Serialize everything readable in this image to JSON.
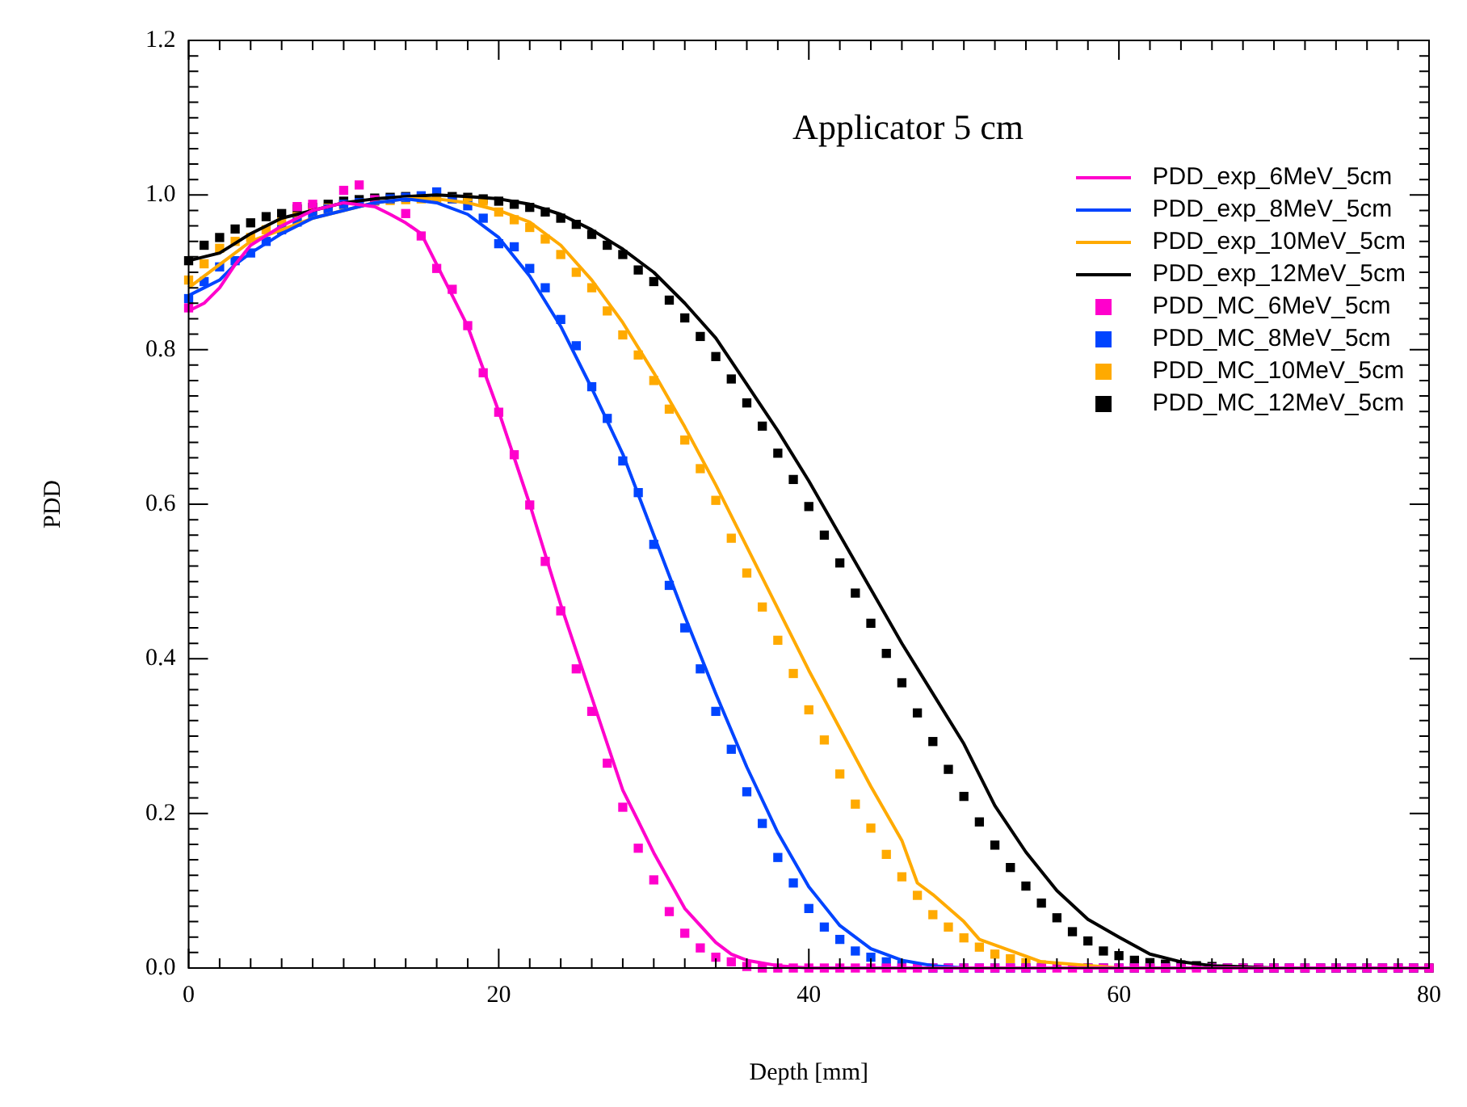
{
  "chart_data": {
    "type": "line",
    "xlabel": "Depth [mm]",
    "ylabel": "PDD",
    "annotations": [
      "Applicator 5 cm"
    ],
    "xlim": [
      0,
      80
    ],
    "xticks": [
      0,
      20,
      40,
      60,
      80
    ],
    "ylim": [
      0,
      1.2
    ],
    "yticks": [
      {
        "value": 0,
        "label": "0.0"
      },
      0.2,
      0.4,
      0.6,
      0.8,
      {
        "value": 1,
        "label": "1.0"
      },
      1.2
    ],
    "grid": false,
    "legend": "top right",
    "x": [
      0,
      1,
      2,
      3,
      4,
      5,
      6,
      7,
      8,
      9,
      10,
      11,
      12,
      13,
      14,
      15,
      16,
      17,
      18,
      19,
      20,
      21,
      22,
      23,
      24,
      25,
      26,
      27,
      28,
      29,
      30,
      31,
      32,
      33,
      34,
      35,
      36,
      37,
      38,
      39,
      40,
      41,
      42,
      43,
      44,
      45,
      46,
      47,
      48,
      49,
      50,
      51,
      52,
      53,
      54,
      55,
      56,
      57,
      58,
      59,
      60,
      61,
      62,
      63,
      64,
      65,
      66,
      67,
      68,
      69,
      70,
      71,
      72,
      73,
      74,
      75,
      76,
      77,
      78,
      79,
      80
    ],
    "series": [
      {
        "name": "PDD_exp_6MeV_5cm",
        "type": "line",
        "marker": "none",
        "line_style": "solid",
        "color": "#ff00cc",
        "x": [
          0,
          1,
          2,
          3,
          4,
          6,
          8,
          10,
          12,
          13,
          14,
          15,
          18,
          20,
          22,
          24,
          26,
          28,
          29,
          30,
          32,
          34,
          35,
          36,
          38,
          40,
          80
        ],
        "values": [
          0.85,
          0.86,
          0.88,
          0.91,
          0.935,
          0.96,
          0.98,
          0.99,
          0.985,
          0.975,
          0.964,
          0.95,
          0.83,
          0.72,
          0.6,
          0.47,
          0.35,
          0.23,
          0.19,
          0.149,
          0.077,
          0.033,
          0.018,
          0.01,
          0.003,
          0,
          0
        ]
      },
      {
        "name": "PDD_exp_8MeV_5cm",
        "type": "line",
        "marker": "none",
        "line_style": "solid",
        "color": "#0044ff",
        "x": [
          0,
          1,
          2,
          3,
          4,
          6,
          8,
          10,
          12,
          14,
          16,
          18,
          20,
          22,
          24,
          26,
          28,
          30,
          32,
          34,
          36,
          38,
          40,
          42,
          44,
          46,
          48,
          50,
          80
        ],
        "values": [
          0.87,
          0.88,
          0.89,
          0.91,
          0.925,
          0.95,
          0.97,
          0.98,
          0.99,
          0.995,
          0.99,
          0.975,
          0.945,
          0.895,
          0.83,
          0.75,
          0.665,
          0.56,
          0.455,
          0.355,
          0.26,
          0.175,
          0.105,
          0.055,
          0.025,
          0.01,
          0.003,
          0,
          0
        ]
      },
      {
        "name": "PDD_exp_10MeV_5cm",
        "type": "line",
        "marker": "none",
        "line_style": "solid",
        "color": "#ffaa00",
        "x": [
          0,
          2,
          4,
          6,
          8,
          10,
          12,
          14,
          16,
          18,
          20,
          22,
          24,
          26,
          28,
          30,
          32,
          34,
          36,
          38,
          40,
          42,
          44,
          46,
          47,
          48,
          50,
          51,
          55,
          60,
          80
        ],
        "values": [
          0.88,
          0.91,
          0.94,
          0.955,
          0.97,
          0.98,
          0.99,
          0.995,
          0.995,
          0.99,
          0.98,
          0.965,
          0.935,
          0.89,
          0.835,
          0.77,
          0.7,
          0.625,
          0.545,
          0.465,
          0.385,
          0.31,
          0.235,
          0.165,
          0.11,
          0.095,
          0.06,
          0.037,
          0.008,
          0,
          0
        ]
      },
      {
        "name": "PDD_exp_12MeV_5cm",
        "type": "line",
        "marker": "none",
        "line_style": "solid",
        "color": "#000000",
        "x": [
          0,
          2,
          4,
          6,
          8,
          10,
          12,
          14,
          16,
          18,
          20,
          22,
          24,
          26,
          28,
          30,
          32,
          34,
          36,
          38,
          40,
          42,
          44,
          46,
          48,
          50,
          52,
          54,
          56,
          58,
          60,
          62,
          64,
          66,
          70,
          80
        ],
        "values": [
          0.915,
          0.925,
          0.95,
          0.97,
          0.98,
          0.99,
          0.995,
          0.998,
          1.0,
          0.998,
          0.995,
          0.988,
          0.975,
          0.955,
          0.93,
          0.9,
          0.86,
          0.815,
          0.755,
          0.695,
          0.63,
          0.56,
          0.49,
          0.42,
          0.355,
          0.29,
          0.21,
          0.15,
          0.1,
          0.063,
          0.04,
          0.018,
          0.008,
          0.003,
          0,
          0
        ]
      },
      {
        "name": "PDD_MC_6MeV_5cm",
        "type": "scatter",
        "marker": "square",
        "color": "#ff00cc",
        "values": [
          0.854,
          null,
          null,
          null,
          null,
          null,
          null,
          0.985,
          0.988,
          null,
          1.006,
          1.013,
          0.994,
          null,
          0.976,
          0.947,
          0.905,
          0.878,
          0.831,
          0.77,
          0.719,
          0.664,
          0.599,
          0.526,
          0.462,
          0.387,
          0.332,
          0.265,
          0.208,
          0.155,
          0.114,
          0.073,
          0.045,
          0.026,
          0.014,
          0.008,
          0.002,
          0,
          0,
          0,
          0,
          0,
          0,
          0,
          0,
          0,
          0,
          0,
          0,
          0,
          0,
          0,
          0,
          0,
          0,
          0,
          0,
          0,
          0,
          0,
          0,
          0,
          0,
          0,
          0,
          0,
          0,
          0,
          0,
          0,
          0,
          0,
          0,
          0,
          0,
          0,
          0,
          0,
          0,
          0,
          0
        ]
      },
      {
        "name": "PDD_MC_8MeV_5cm",
        "type": "scatter",
        "marker": "square",
        "color": "#0044ff",
        "values": [
          0.866,
          0.888,
          0.907,
          0.915,
          0.925,
          0.94,
          0.955,
          0.965,
          0.975,
          0.982,
          0.988,
          0.99,
          0.993,
          0.995,
          0.997,
          0.999,
          1.004,
          0.995,
          0.986,
          0.97,
          0.937,
          0.933,
          0.905,
          0.88,
          0.839,
          0.805,
          0.752,
          0.711,
          0.656,
          0.615,
          0.548,
          0.495,
          0.44,
          0.387,
          0.332,
          0.283,
          0.228,
          0.187,
          0.143,
          0.11,
          0.077,
          0.053,
          0.037,
          0.022,
          0.014,
          0.008,
          0.004,
          null,
          0,
          0,
          0,
          0,
          0,
          0,
          0,
          0,
          null,
          null,
          0,
          0,
          0,
          0,
          0,
          0,
          0,
          null,
          0,
          0,
          0,
          0,
          0,
          0,
          0,
          0,
          0,
          0,
          0,
          0,
          0,
          0,
          null
        ]
      },
      {
        "name": "PDD_MC_10MeV_5cm",
        "type": "scatter",
        "marker": "square",
        "color": "#ffaa00",
        "values": [
          0.89,
          0.911,
          0.931,
          0.94,
          0.945,
          0.955,
          0.965,
          0.972,
          0.978,
          0.983,
          0.987,
          null,
          0.992,
          0.993,
          0.994,
          0.995,
          0.995,
          0.995,
          0.994,
          0.992,
          0.978,
          0.968,
          0.958,
          0.943,
          0.923,
          0.9,
          0.88,
          0.85,
          0.819,
          0.793,
          0.76,
          0.723,
          0.683,
          0.646,
          0.605,
          0.556,
          0.511,
          0.467,
          0.424,
          0.381,
          0.334,
          0.295,
          0.251,
          0.212,
          0.181,
          0.147,
          0.118,
          0.094,
          0.069,
          0.053,
          0.039,
          0.027,
          0.018,
          0.012,
          0.007,
          0.004,
          null,
          null,
          0,
          0,
          0,
          0,
          0,
          0,
          0,
          null,
          0,
          0,
          0,
          0,
          0,
          0,
          0,
          0,
          0,
          0,
          0,
          0,
          0,
          0,
          null
        ]
      },
      {
        "name": "PDD_MC_12MeV_5cm",
        "type": "scatter",
        "marker": "square",
        "color": "#000000",
        "values": [
          0.915,
          0.935,
          0.945,
          0.956,
          0.964,
          0.972,
          0.976,
          0.982,
          0.984,
          0.988,
          0.992,
          0.994,
          0.996,
          0.997,
          0.998,
          null,
          null,
          0.998,
          0.997,
          0.995,
          0.992,
          0.988,
          0.984,
          0.978,
          0.97,
          0.962,
          0.949,
          0.935,
          0.923,
          0.903,
          0.888,
          0.864,
          0.841,
          0.817,
          0.791,
          0.762,
          0.731,
          0.701,
          0.666,
          0.632,
          0.597,
          0.56,
          0.524,
          0.485,
          0.446,
          0.407,
          0.369,
          0.33,
          0.293,
          0.257,
          0.222,
          0.189,
          0.159,
          0.13,
          0.106,
          0.084,
          0.065,
          0.047,
          0.035,
          0.022,
          0.016,
          0.01,
          0.007,
          0.005,
          0.004,
          0.003,
          0.002,
          0,
          0,
          0,
          0,
          0,
          0,
          0,
          0,
          0,
          0,
          0,
          0,
          0,
          0
        ]
      }
    ]
  }
}
